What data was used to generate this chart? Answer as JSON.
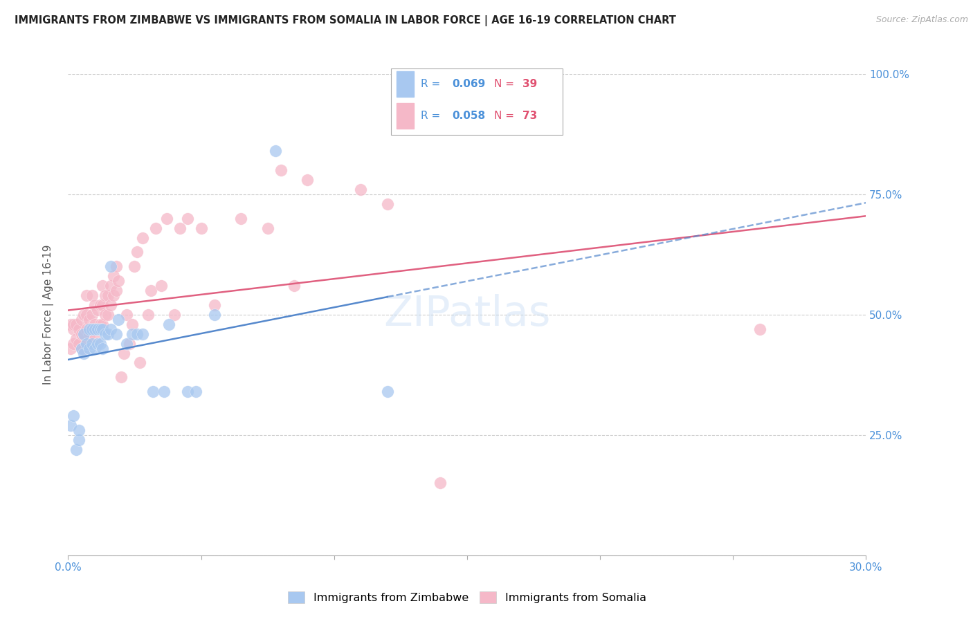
{
  "title": "IMMIGRANTS FROM ZIMBABWE VS IMMIGRANTS FROM SOMALIA IN LABOR FORCE | AGE 16-19 CORRELATION CHART",
  "source": "Source: ZipAtlas.com",
  "ylabel": "In Labor Force | Age 16-19",
  "xlim": [
    0.0,
    0.3
  ],
  "ylim": [
    0.0,
    1.0
  ],
  "zimbabwe_color": "#a8c8f0",
  "somalia_color": "#f5b8c8",
  "zimbabwe_line_color": "#5588cc",
  "somalia_line_color": "#e06080",
  "zimbabwe_R": 0.069,
  "zimbabwe_N": 39,
  "somalia_R": 0.058,
  "somalia_N": 73,
  "legend_R_color": "#4a90d9",
  "legend_N_color": "#e05070",
  "watermark": "ZIPatlas",
  "zimbabwe_x": [
    0.001,
    0.002,
    0.003,
    0.004,
    0.004,
    0.005,
    0.006,
    0.006,
    0.007,
    0.008,
    0.008,
    0.009,
    0.009,
    0.01,
    0.01,
    0.011,
    0.011,
    0.012,
    0.012,
    0.013,
    0.013,
    0.014,
    0.015,
    0.016,
    0.016,
    0.018,
    0.019,
    0.022,
    0.024,
    0.026,
    0.028,
    0.032,
    0.036,
    0.038,
    0.045,
    0.048,
    0.055,
    0.078,
    0.12
  ],
  "zimbabwe_y": [
    0.27,
    0.29,
    0.22,
    0.24,
    0.26,
    0.43,
    0.42,
    0.46,
    0.44,
    0.43,
    0.47,
    0.44,
    0.47,
    0.43,
    0.47,
    0.44,
    0.47,
    0.44,
    0.47,
    0.43,
    0.47,
    0.46,
    0.46,
    0.6,
    0.47,
    0.46,
    0.49,
    0.44,
    0.46,
    0.46,
    0.46,
    0.34,
    0.34,
    0.48,
    0.34,
    0.34,
    0.5,
    0.84,
    0.34
  ],
  "somalia_x": [
    0.001,
    0.001,
    0.002,
    0.002,
    0.002,
    0.003,
    0.003,
    0.004,
    0.004,
    0.005,
    0.005,
    0.005,
    0.006,
    0.006,
    0.006,
    0.007,
    0.007,
    0.007,
    0.007,
    0.008,
    0.008,
    0.009,
    0.009,
    0.009,
    0.01,
    0.01,
    0.01,
    0.011,
    0.011,
    0.012,
    0.012,
    0.013,
    0.013,
    0.013,
    0.014,
    0.014,
    0.015,
    0.015,
    0.016,
    0.016,
    0.017,
    0.017,
    0.018,
    0.018,
    0.019,
    0.02,
    0.021,
    0.022,
    0.023,
    0.024,
    0.025,
    0.026,
    0.027,
    0.028,
    0.03,
    0.031,
    0.033,
    0.035,
    0.037,
    0.04,
    0.042,
    0.045,
    0.05,
    0.055,
    0.065,
    0.075,
    0.08,
    0.085,
    0.09,
    0.11,
    0.12,
    0.26,
    0.14
  ],
  "somalia_y": [
    0.48,
    0.43,
    0.47,
    0.44,
    0.48,
    0.45,
    0.48,
    0.44,
    0.47,
    0.43,
    0.46,
    0.49,
    0.43,
    0.46,
    0.5,
    0.44,
    0.47,
    0.5,
    0.54,
    0.46,
    0.49,
    0.47,
    0.5,
    0.54,
    0.45,
    0.48,
    0.52,
    0.47,
    0.51,
    0.48,
    0.52,
    0.48,
    0.52,
    0.56,
    0.5,
    0.54,
    0.5,
    0.54,
    0.52,
    0.56,
    0.54,
    0.58,
    0.55,
    0.6,
    0.57,
    0.37,
    0.42,
    0.5,
    0.44,
    0.48,
    0.6,
    0.63,
    0.4,
    0.66,
    0.5,
    0.55,
    0.68,
    0.56,
    0.7,
    0.5,
    0.68,
    0.7,
    0.68,
    0.52,
    0.7,
    0.68,
    0.8,
    0.56,
    0.78,
    0.76,
    0.73,
    0.47,
    0.15
  ]
}
